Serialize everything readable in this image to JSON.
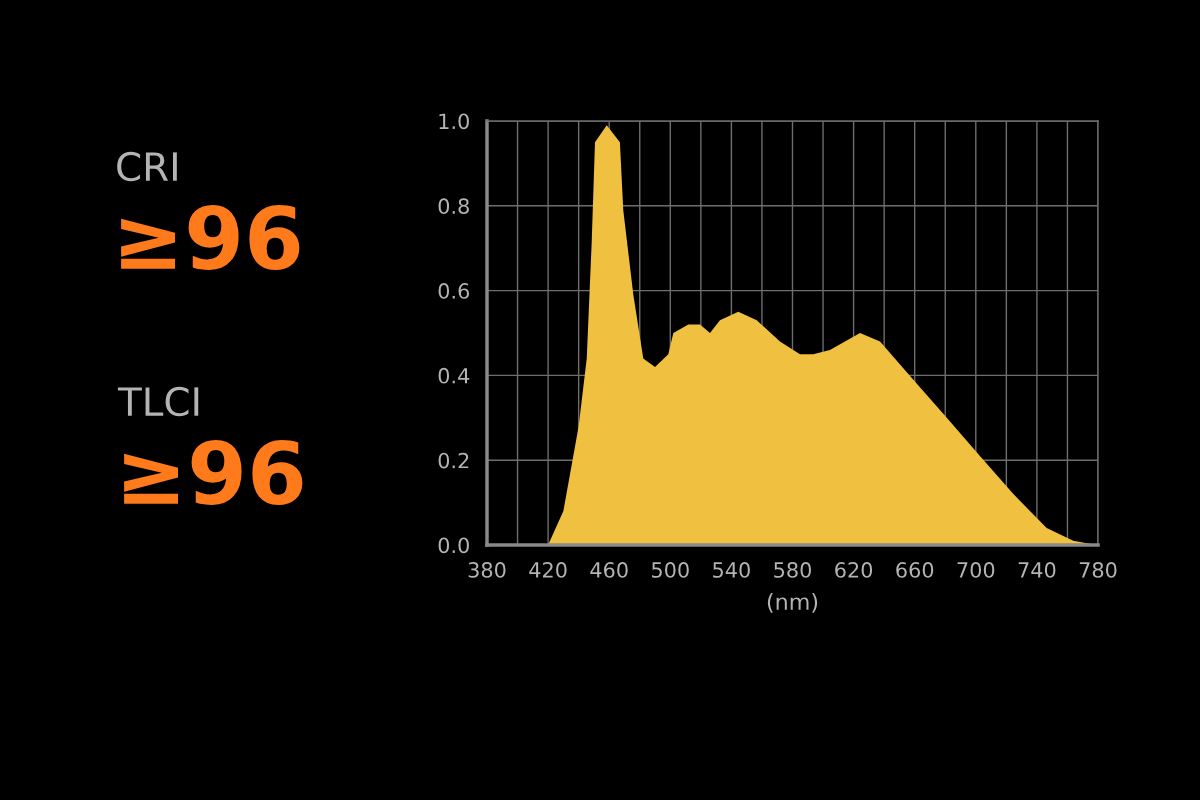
{
  "chart_data": {
    "type": "area",
    "xlabel": "(nm)",
    "annotations": [
      "CRI",
      "≥96",
      "TLCI",
      "≥96"
    ],
    "series": [
      {
        "color": "#f0c040",
        "x": [
          420,
          430,
          440,
          445.3,
          448.5,
          450.7,
          458.4,
          467,
          469.2,
          475.8,
          482.3,
          490,
          498.7,
          502,
          511.8,
          519.4,
          526,
          532.5,
          544.5,
          556.6,
          571.8,
          584.9,
          593.6,
          604.5,
          624.2,
          637.3,
          659.1,
          681,
          702.7,
          724.6,
          746.4,
          763.8,
          779
        ],
        "values": [
          0,
          0.08,
          0.28,
          0.44,
          0.71,
          0.95,
          0.99,
          0.95,
          0.79,
          0.59,
          0.44,
          0.42,
          0.45,
          0.5,
          0.52,
          0.52,
          0.5,
          0.53,
          0.55,
          0.53,
          0.48,
          0.45,
          0.45,
          0.46,
          0.5,
          0.48,
          0.39,
          0.3,
          0.21,
          0.12,
          0.04,
          0.01,
          0
        ]
      }
    ],
    "xlim": [
      380,
      780
    ],
    "ylim": [
      0,
      1
    ],
    "xticks": [
      380,
      {
        "value": 400,
        "label": null
      },
      420,
      {
        "value": 440,
        "label": null
      },
      460,
      {
        "value": 480,
        "label": null
      },
      500,
      {
        "value": 520,
        "label": null
      },
      540,
      {
        "value": 560,
        "label": null
      },
      580,
      {
        "value": 600,
        "label": null
      },
      620,
      {
        "value": 640,
        "label": null
      },
      660,
      {
        "value": 680,
        "label": null
      },
      700,
      {
        "value": 720,
        "label": null
      },
      740,
      {
        "value": 760,
        "label": null
      },
      780
    ],
    "yticks": [
      {
        "value": 0,
        "label": "0.0"
      },
      {
        "value": 0.2,
        "label": "0.2"
      },
      {
        "value": 0.4,
        "label": "0.4"
      },
      {
        "value": 0.6,
        "label": "0.6"
      },
      {
        "value": 0.8,
        "label": "0.8"
      },
      {
        "value": 1,
        "label": "1.0"
      }
    ],
    "grid": true
  }
}
